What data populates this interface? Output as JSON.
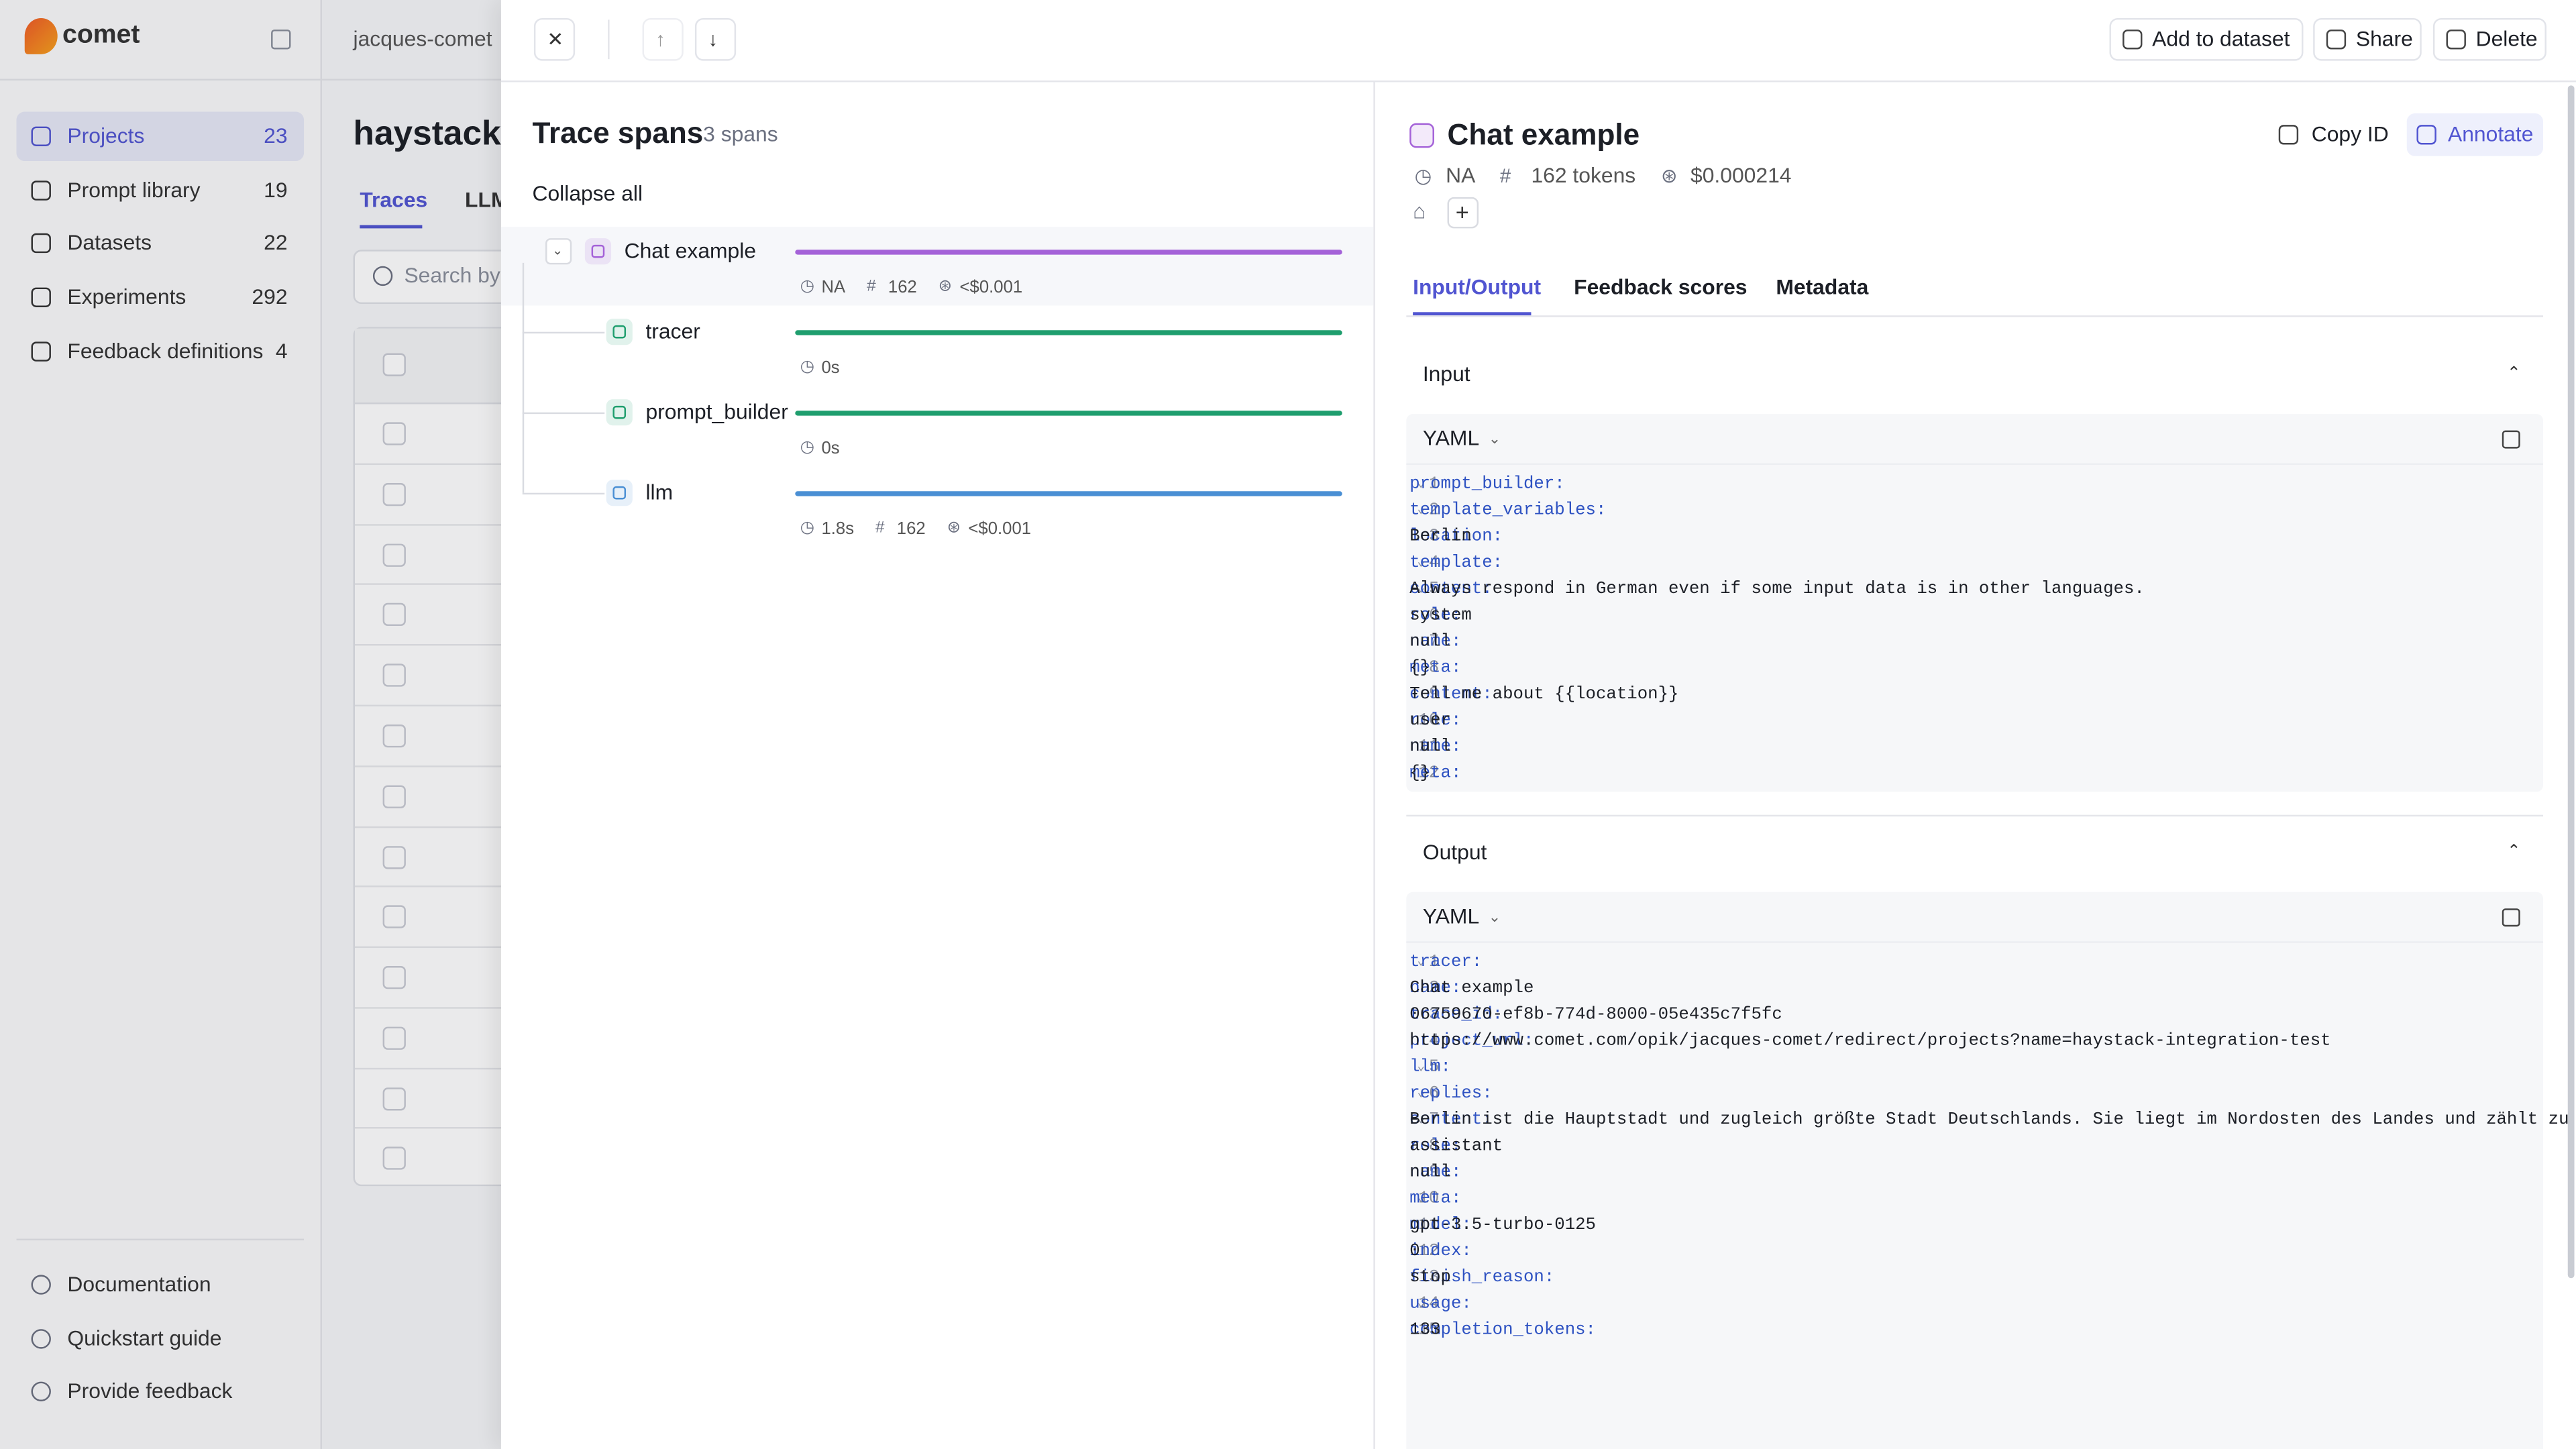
{
  "sidebar": {
    "brand": "comet",
    "nav": [
      {
        "label": "Projects",
        "count": 23
      },
      {
        "label": "Prompt library",
        "count": 19
      },
      {
        "label": "Datasets",
        "count": 22
      },
      {
        "label": "Experiments",
        "count": 292
      },
      {
        "label": "Feedback definitions",
        "count": 4
      }
    ],
    "footer": [
      "Documentation",
      "Quickstart guide",
      "Provide feedback"
    ]
  },
  "background": {
    "breadcrumb": "jacques-comet",
    "title": "haystack-",
    "tabs": [
      "Traces",
      "LLM"
    ],
    "search": "Search by"
  },
  "panel": {
    "title": "Trace spans",
    "span_count": "3 spans",
    "collapse": "Collapse all",
    "spans": [
      {
        "name": "Chat example",
        "color": "#a462d8",
        "meta": [
          "NA",
          "162",
          "<$0.001"
        ]
      },
      {
        "name": "tracer",
        "color": "#1f9e6e",
        "meta": [
          "0s"
        ]
      },
      {
        "name": "prompt_builder",
        "color": "#1f9e6e",
        "meta": [
          "0s"
        ]
      },
      {
        "name": "llm",
        "color": "#4a8fd4",
        "meta": [
          "1.8s",
          "162",
          "<$0.001"
        ]
      }
    ]
  },
  "detail": {
    "actions": [
      "Add to dataset",
      "Share",
      "Delete"
    ],
    "title": "Chat example",
    "copy": "Copy ID",
    "annotate": "Annotate",
    "stats": [
      "NA",
      "162 tokens",
      "$0.000214"
    ],
    "tabs": [
      "Input/Output",
      "Feedback scores",
      "Metadata"
    ],
    "input": {
      "label": "Input",
      "format": "YAML",
      "lines": [
        {
          "n": 1,
          "key": "prompt_builder:",
          "fold": true
        },
        {
          "n": 2,
          "indent": "  ",
          "key": "template_variables:",
          "fold": true
        },
        {
          "n": 3,
          "indent": "    ",
          "key": "location:",
          "value": " Berlin"
        },
        {
          "n": 4,
          "indent": "  ",
          "key": "template:",
          "fold": true
        },
        {
          "n": 5,
          "indent": "    - ",
          "key": "content:",
          "value": " Always respond in German even if some input data is in other languages.",
          "fold": true
        },
        {
          "n": 6,
          "indent": "      ",
          "key": "role:",
          "value": " system"
        },
        {
          "n": 7,
          "indent": "      ",
          "key": "name:",
          "value": " null"
        },
        {
          "n": 8,
          "indent": "      ",
          "key": "meta:",
          "value": " {}"
        },
        {
          "n": 9,
          "indent": "    - ",
          "key": "content:",
          "value": " Tell me about {{location}}"
        },
        {
          "n": 10,
          "indent": "      ",
          "key": "role:",
          "value": " user"
        },
        {
          "n": 11,
          "indent": "      ",
          "key": "name:",
          "value": " null"
        },
        {
          "n": 12,
          "indent": "      ",
          "key": "meta:",
          "value": " {}"
        }
      ]
    },
    "output": {
      "label": "Output",
      "format": "YAML",
      "lines": [
        {
          "n": 1,
          "key": "tracer:",
          "fold": true
        },
        {
          "n": 2,
          "indent": "  ",
          "key": "name:",
          "value": " Chat example"
        },
        {
          "n": 3,
          "indent": "  ",
          "key": "trace_id:",
          "value": " 06759670-ef8b-774d-8000-05e435c7f5fc"
        },
        {
          "n": 4,
          "indent": "  ",
          "key": "project_url:",
          "value": " https://www.comet.com/opik/jacques-comet/redirect/projects?name=haystack-integration-test"
        },
        {
          "n": 5,
          "key": "llm:",
          "fold": true
        },
        {
          "n": 6,
          "indent": "  ",
          "key": "replies:",
          "fold": true
        },
        {
          "n": 7,
          "indent": "    - ",
          "key": "content:",
          "value": " Berlin ist die Hauptstadt und zugleich größte Stadt Deutschlands. Sie liegt im Nordosten des Landes und zählt zu den bedeutendsten Metropolen Europas. Berlin ist für seine bewegte Geschichte, seine kulturelle Vielfalt und sein pulsierendes Nachtleben bekannt. Zu den bekanntesten Sehenswürdigkeiten gehören das Brandenburger Tor, der Berliner Fernsehturm, die Berliner Mauer sowie zahlreiche Museen und Theater. Die Stadt bietet auch eine vielfältige Gastronomieszene und ist ein beliebtes Ziel für Touristen aus aller Welt.",
          "fold": true
        },
        {
          "n": 8,
          "indent": "      ",
          "key": "role:",
          "value": " assistant"
        },
        {
          "n": 9,
          "indent": "      ",
          "key": "name:",
          "value": " null"
        },
        {
          "n": 10,
          "indent": "      ",
          "key": "meta:",
          "fold": true
        },
        {
          "n": 11,
          "indent": "        ",
          "key": "model:",
          "value": " gpt-3.5-turbo-0125"
        },
        {
          "n": 12,
          "indent": "        ",
          "key": "index:",
          "value": " 0"
        },
        {
          "n": 13,
          "indent": "        ",
          "key": "finish_reason:",
          "value": " stop"
        },
        {
          "n": 14,
          "indent": "        ",
          "key": "usage:",
          "fold": true
        },
        {
          "n": 15,
          "indent": "          ",
          "key": "completion_tokens:",
          "value": " 133"
        }
      ]
    }
  }
}
